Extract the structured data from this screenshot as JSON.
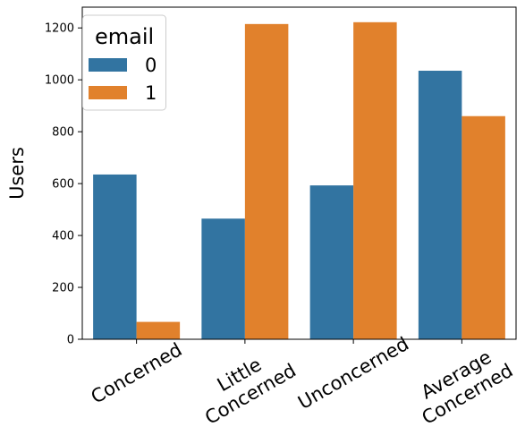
{
  "chart_data": {
    "type": "bar",
    "ylabel": "Users",
    "xlabel": "",
    "ylim": [
      0,
      1280
    ],
    "yticks": [
      0,
      200,
      400,
      600,
      800,
      1000,
      1200
    ],
    "categories": [
      "Concerned",
      "Little Concerned",
      "Unconcerned",
      "Average Concerned"
    ],
    "series": [
      {
        "name": "0",
        "values": [
          635,
          465,
          593,
          1035
        ]
      },
      {
        "name": "1",
        "values": [
          67,
          1215,
          1222,
          860
        ]
      }
    ],
    "legend": {
      "title": "email",
      "placement": "top-left"
    },
    "colors": [
      "#3274a1",
      "#e1812c"
    ],
    "grid": false
  }
}
